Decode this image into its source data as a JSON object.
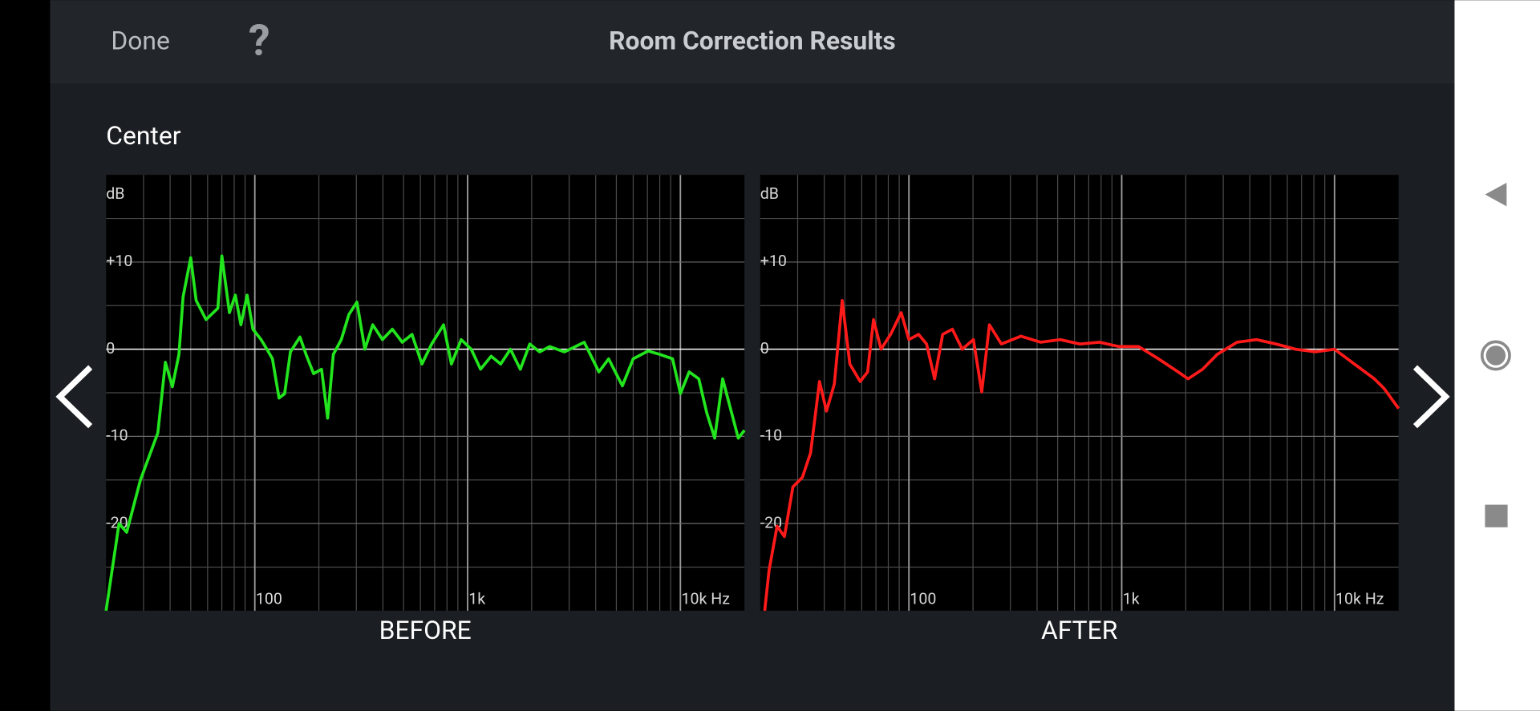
{
  "header": {
    "done": "Done",
    "help": "?",
    "title": "Room Correction Results"
  },
  "channel": "Center",
  "chart_data": [
    {
      "type": "line",
      "title": "BEFORE",
      "y_label": "dB",
      "xscale": "log",
      "grid": true,
      "xlim": [
        20,
        20000
      ],
      "ylim": [
        -30,
        20
      ],
      "xticks": [
        100,
        {
          "value": 1000,
          "label": "1k"
        },
        {
          "value": 10000,
          "label": "10k Hz"
        }
      ],
      "yticks": [
        {
          "value": 10,
          "label": "+10"
        },
        0,
        -10,
        -20
      ],
      "x": [
        20,
        23,
        25,
        29,
        35,
        38,
        41,
        44,
        46,
        50,
        53,
        59,
        67,
        70,
        76,
        81,
        86,
        92,
        98,
        107,
        114,
        121,
        130,
        138,
        147,
        163,
        174,
        189,
        206,
        220,
        234,
        255,
        277,
        302,
        329,
        358,
        398,
        443,
        493,
        548,
        610,
        678,
        771,
        839,
        933,
        1040,
        1150,
        1290,
        1430,
        1590,
        1770,
        1960,
        2180,
        2430,
        2850,
        3530,
        4140,
        4600,
        5340,
        6000,
        7050,
        8000,
        9190,
        10000,
        11000,
        12200,
        13300,
        14500,
        15800,
        17400,
        18700,
        20000
      ],
      "series": [
        {
          "color": "#22e51e",
          "values": [
            -30,
            -20,
            -21,
            -15,
            -9.6,
            -1.5,
            -4.3,
            -0.6,
            6,
            10.5,
            5.6,
            3.4,
            4.7,
            10.7,
            4.2,
            6.2,
            2.8,
            6.2,
            2.3,
            1.1,
            0,
            -1.1,
            -5.6,
            -5.1,
            -0.3,
            1.4,
            -0.6,
            -2.8,
            -2.3,
            -7.9,
            -0.6,
            1.1,
            4,
            5.4,
            0,
            2.8,
            1.1,
            2.3,
            0.8,
            1.7,
            -1.7,
            0.6,
            2.8,
            -1.7,
            1.1,
            0,
            -2.3,
            -0.8,
            -1.7,
            0,
            -2.3,
            0.6,
            -0.3,
            0.3,
            -0.3,
            0.8,
            -2.6,
            -1.1,
            -4.2,
            -1.1,
            -0.2,
            -0.6,
            -1.1,
            -5.1,
            -2.6,
            -3.4,
            -7.3,
            -10.2,
            -3.4,
            -7.3,
            -10.2,
            -9.3
          ]
        }
      ]
    },
    {
      "type": "line",
      "title": "AFTER",
      "y_label": "dB",
      "xscale": "log",
      "grid": true,
      "xlim": [
        20,
        20000
      ],
      "ylim": [
        -30,
        20
      ],
      "xticks": [
        100,
        {
          "value": 1000,
          "label": "1k"
        },
        {
          "value": 10000,
          "label": "10k Hz"
        }
      ],
      "yticks": [
        {
          "value": 10,
          "label": "+10"
        },
        0,
        -10,
        -20
      ],
      "x": [
        21,
        22,
        24,
        26,
        28.5,
        31.6,
        34.5,
        38,
        41,
        44.6,
        48.6,
        52.8,
        59,
        64,
        68.2,
        74,
        82,
        92,
        100,
        111,
        121,
        132,
        144,
        160,
        178,
        201,
        220,
        239,
        272,
        336,
        416,
        514,
        636,
        786,
        972,
        1200,
        1490,
        1840,
        2050,
        2400,
        2810,
        3480,
        4300,
        5320,
        6570,
        8120,
        10000,
        12400,
        15400,
        17100,
        20000
      ],
      "series": [
        {
          "color": "#ff1a1a",
          "values": [
            -30,
            -25.4,
            -20.3,
            -21.5,
            -15.8,
            -14.7,
            -11.9,
            -3.7,
            -7.1,
            -4,
            5.6,
            -1.7,
            -3.7,
            -2.6,
            3.4,
            0,
            1.7,
            4.2,
            1.1,
            1.7,
            0.6,
            -3.4,
            1.7,
            2.3,
            0,
            1.1,
            -4.9,
            2.8,
            0.6,
            1.5,
            0.8,
            1.1,
            0.6,
            0.8,
            0.3,
            0.3,
            -1.1,
            -2.6,
            -3.4,
            -2.3,
            -0.6,
            0.8,
            1.1,
            0.6,
            0,
            -0.3,
            0,
            -1.7,
            -3.4,
            -4.5,
            -6.8
          ]
        }
      ]
    }
  ]
}
